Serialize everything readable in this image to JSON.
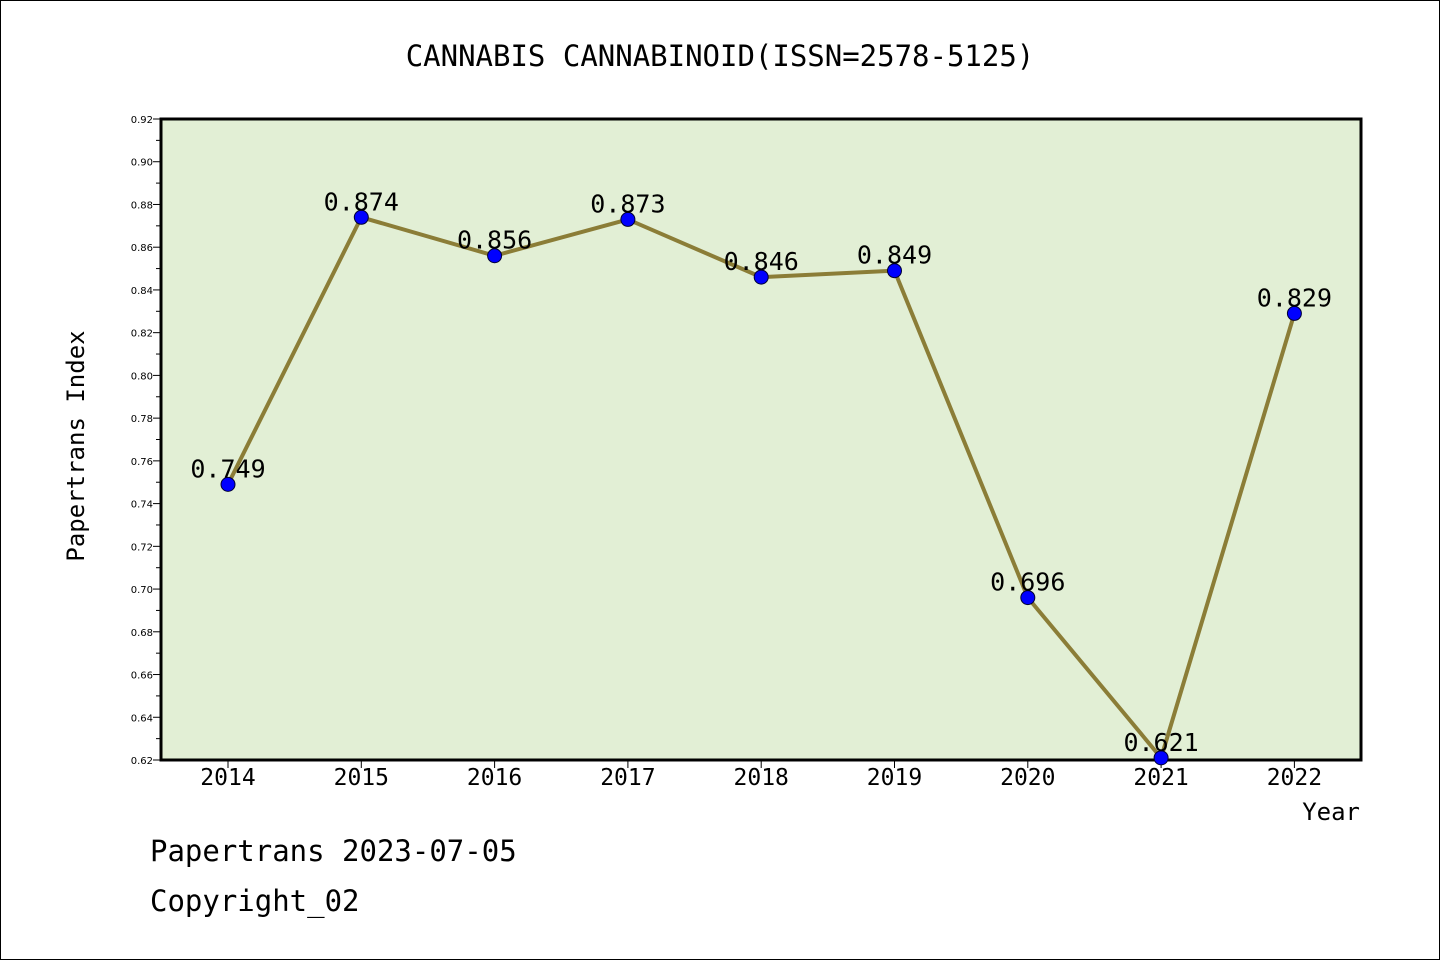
{
  "chart_data": {
    "type": "line",
    "title": "CANNABIS CANNABINOID(ISSN=2578-5125)",
    "xlabel": "Year",
    "ylabel": "Papertrans Index",
    "categories": [
      "2014",
      "2015",
      "2016",
      "2017",
      "2018",
      "2019",
      "2020",
      "2021",
      "2022"
    ],
    "values": [
      0.749,
      0.874,
      0.856,
      0.873,
      0.846,
      0.849,
      0.696,
      0.621,
      0.829
    ],
    "data_labels": [
      "0.749",
      "0.874",
      "0.856",
      "0.873",
      "0.846",
      "0.849",
      "0.696",
      "0.621",
      "0.829"
    ],
    "ylim": [
      0.62,
      0.92
    ],
    "yticks": [
      "0.62",
      "0.64",
      "0.66",
      "0.68",
      "0.70",
      "0.72",
      "0.74",
      "0.76",
      "0.78",
      "0.80",
      "0.82",
      "0.84",
      "0.86",
      "0.88",
      "0.90",
      "0.92"
    ],
    "grid": false,
    "colors": {
      "line": "#8b7d37",
      "marker": "#0000ff",
      "plot_bg": "#e2efd5"
    }
  },
  "footer": {
    "line1": "Papertrans 2023-07-05",
    "line2": "Copyright_02"
  }
}
